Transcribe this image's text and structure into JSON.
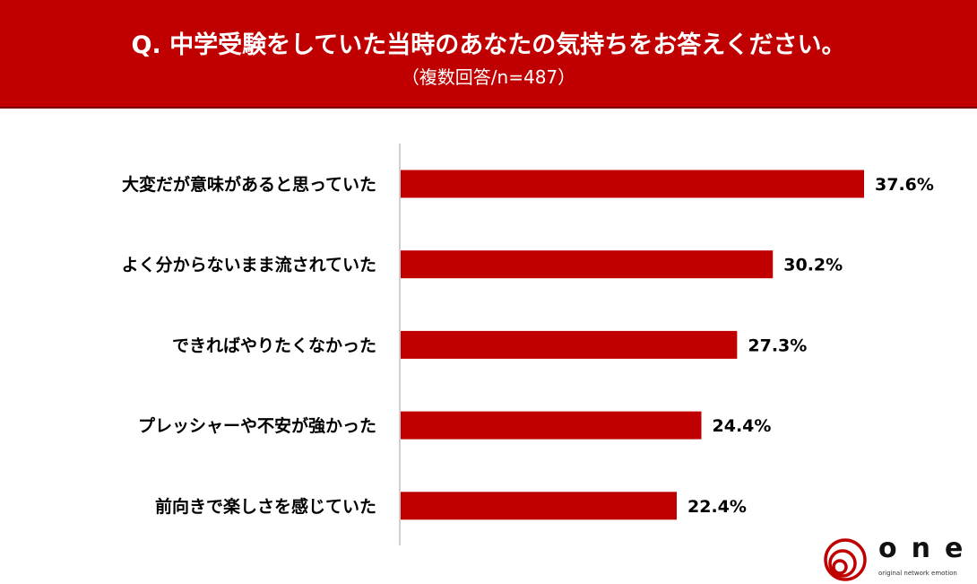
{
  "chart_data": {
    "type": "bar",
    "orientation": "horizontal",
    "title": "Q. 中学受験をしていた当時のあなたの気持ちをお答えください。",
    "subtitle": "（複数回答/n=487）",
    "categories": [
      "大変だが意味があると思っていた",
      "よく分からないまま流されていた",
      "できればやりたくなかった",
      "プレッシャーや不安が強かった",
      "前向きで楽しさを感じていた"
    ],
    "values": [
      37.6,
      30.2,
      27.3,
      24.4,
      22.4
    ],
    "value_labels": [
      "37.6%",
      "30.2%",
      "27.3%",
      "24.4%",
      "22.4%"
    ],
    "unit": "%",
    "xlim": [
      0,
      40
    ],
    "grid": false,
    "bar_color": "#c00000",
    "header_color": "#c00000"
  },
  "logo": {
    "text": "one",
    "tagline": "original network emotion"
  }
}
